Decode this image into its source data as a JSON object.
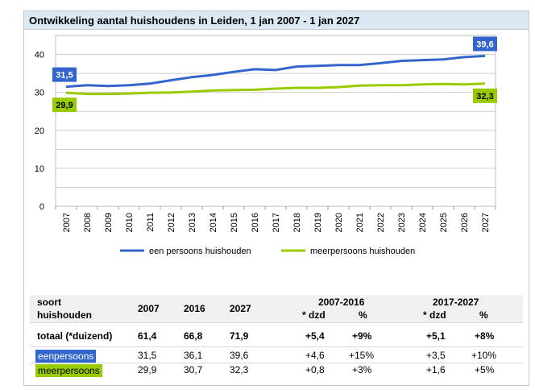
{
  "title": "Ontwikkeling aantal huishoudens in Leiden, 1 jan 2007 - 1 jan 2027",
  "chart_data": {
    "type": "line",
    "x": [
      "2007",
      "2008",
      "2009",
      "2010",
      "2011",
      "2012",
      "2013",
      "2014",
      "2015",
      "2016",
      "2017",
      "2018",
      "2019",
      "2020",
      "2021",
      "2022",
      "2023",
      "2024",
      "2025",
      "2026",
      "2027"
    ],
    "series": [
      {
        "name": "een persoons huishouden",
        "color": "#3366cc",
        "values": [
          31.5,
          31.9,
          31.7,
          31.9,
          32.3,
          33.2,
          34.0,
          34.6,
          35.4,
          36.1,
          35.9,
          36.8,
          37.0,
          37.2,
          37.2,
          37.7,
          38.3,
          38.5,
          38.7,
          39.3,
          39.6
        ]
      },
      {
        "name": "meerpersoons huishouden",
        "color": "#99cc00",
        "values": [
          29.9,
          29.6,
          29.6,
          29.7,
          29.9,
          30.0,
          30.2,
          30.5,
          30.6,
          30.7,
          31.0,
          31.2,
          31.2,
          31.4,
          31.8,
          31.9,
          31.9,
          32.1,
          32.2,
          32.1,
          32.3
        ]
      }
    ],
    "ylim": [
      0,
      45
    ],
    "yticks": [
      0,
      10,
      20,
      30,
      40
    ],
    "callouts": [
      {
        "series": 0,
        "index": 0,
        "label": "31,5"
      },
      {
        "series": 1,
        "index": 0,
        "label": "29,9"
      },
      {
        "series": 0,
        "index": 20,
        "label": "39,6"
      },
      {
        "series": 1,
        "index": 20,
        "label": "32,3"
      }
    ]
  },
  "table": {
    "head_label_1": "soort",
    "head_label_2": "huishouden",
    "col_2007": "2007",
    "col_2016": "2016",
    "col_2027": "2027",
    "period_1": "2007-2016",
    "period_2": "2017-2027",
    "sub_dzd": "* dzd",
    "sub_pct": "%",
    "rows": [
      {
        "label": "totaal (*duizend)",
        "v2007": "61,4",
        "v2016": "66,8",
        "v2027": "71,9",
        "d1": "+5,4",
        "p1": "+9%",
        "d2": "+5,1",
        "p2": "+8%"
      },
      {
        "label": "eenpersoons",
        "v2007": "31,5",
        "v2016": "36,1",
        "v2027": "39,6",
        "d1": "+4,6",
        "p1": "+15%",
        "d2": "+3,5",
        "p2": "+10%"
      },
      {
        "label": "meerpersoons",
        "v2007": "29,9",
        "v2016": "30,7",
        "v2027": "32,3",
        "d1": "+0,8",
        "p1": "+3%",
        "d2": "+1,6",
        "p2": "+5%"
      }
    ]
  }
}
